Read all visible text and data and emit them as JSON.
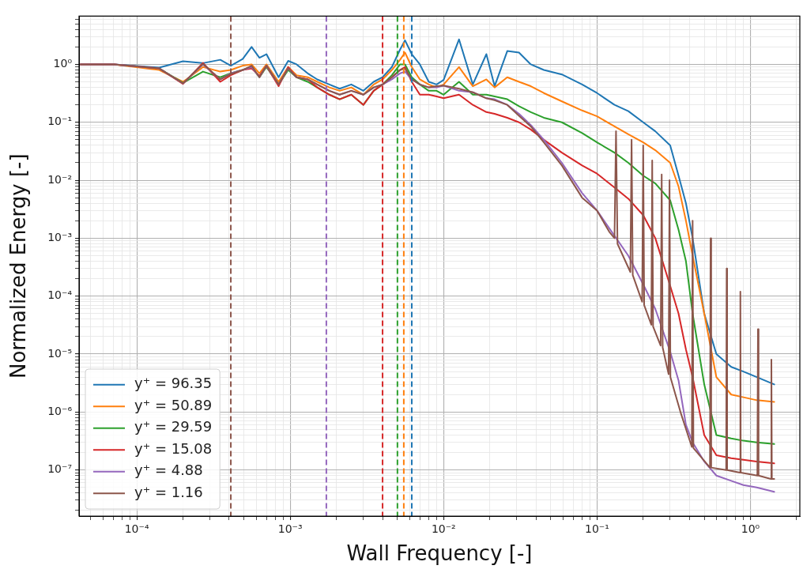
{
  "chart_data": {
    "type": "line",
    "xlabel": "Wall Frequency [-]",
    "ylabel": "Normalized Energy [-]",
    "log": "xy",
    "grid": true,
    "legend": "bottom left",
    "xlim": [
      4.2e-05,
      2.1
    ],
    "ylim": [
      1.6e-08,
      6.8
    ],
    "xticks": [
      {
        "value": 5e-05,
        "label": null
      },
      {
        "value": 6e-05,
        "label": null
      },
      {
        "value": 7e-05,
        "label": null
      },
      {
        "value": 8e-05,
        "label": null
      },
      {
        "value": 9e-05,
        "label": null
      },
      {
        "value": 0.0001,
        "label": "10⁻⁴"
      },
      {
        "value": 0.0002,
        "label": null
      },
      {
        "value": 0.0003,
        "label": null
      },
      {
        "value": 0.0004,
        "label": null
      },
      {
        "value": 0.0005,
        "label": null
      },
      {
        "value": 0.0006,
        "label": null
      },
      {
        "value": 0.0007,
        "label": null
      },
      {
        "value": 0.0008,
        "label": null
      },
      {
        "value": 0.0009,
        "label": null
      },
      {
        "value": 0.001,
        "label": "10⁻³"
      },
      {
        "value": 0.002,
        "label": null
      },
      {
        "value": 0.003,
        "label": null
      },
      {
        "value": 0.004,
        "label": null
      },
      {
        "value": 0.005,
        "label": null
      },
      {
        "value": 0.006,
        "label": null
      },
      {
        "value": 0.007,
        "label": null
      },
      {
        "value": 0.008,
        "label": null
      },
      {
        "value": 0.009,
        "label": null
      },
      {
        "value": 0.01,
        "label": "10⁻²"
      },
      {
        "value": 0.02,
        "label": null
      },
      {
        "value": 0.03,
        "label": null
      },
      {
        "value": 0.04,
        "label": null
      },
      {
        "value": 0.05,
        "label": null
      },
      {
        "value": 0.06,
        "label": null
      },
      {
        "value": 0.07,
        "label": null
      },
      {
        "value": 0.08,
        "label": null
      },
      {
        "value": 0.09,
        "label": null
      },
      {
        "value": 0.1,
        "label": "10⁻¹"
      },
      {
        "value": 0.2,
        "label": null
      },
      {
        "value": 0.3,
        "label": null
      },
      {
        "value": 0.4,
        "label": null
      },
      {
        "value": 0.5,
        "label": null
      },
      {
        "value": 0.6,
        "label": null
      },
      {
        "value": 0.7,
        "label": null
      },
      {
        "value": 0.8,
        "label": null
      },
      {
        "value": 0.9,
        "label": null
      },
      {
        "value": 1,
        "label": "10⁰"
      },
      {
        "value": 2,
        "label": null
      }
    ],
    "yticks": [
      {
        "value": 2e-08,
        "label": null
      },
      {
        "value": 3e-08,
        "label": null
      },
      {
        "value": 4e-08,
        "label": null
      },
      {
        "value": 5e-08,
        "label": null
      },
      {
        "value": 6e-08,
        "label": null
      },
      {
        "value": 7e-08,
        "label": null
      },
      {
        "value": 8e-08,
        "label": null
      },
      {
        "value": 9e-08,
        "label": null
      },
      {
        "value": 1e-07,
        "label": "10⁻⁷"
      },
      {
        "value": 2e-07,
        "label": null
      },
      {
        "value": 3e-07,
        "label": null
      },
      {
        "value": 4e-07,
        "label": null
      },
      {
        "value": 5e-07,
        "label": null
      },
      {
        "value": 6e-07,
        "label": null
      },
      {
        "value": 7e-07,
        "label": null
      },
      {
        "value": 8e-07,
        "label": null
      },
      {
        "value": 9e-07,
        "label": null
      },
      {
        "value": 1e-06,
        "label": "10⁻⁶"
      },
      {
        "value": 2e-06,
        "label": null
      },
      {
        "value": 3e-06,
        "label": null
      },
      {
        "value": 4e-06,
        "label": null
      },
      {
        "value": 5e-06,
        "label": null
      },
      {
        "value": 6e-06,
        "label": null
      },
      {
        "value": 7e-06,
        "label": null
      },
      {
        "value": 8e-06,
        "label": null
      },
      {
        "value": 9e-06,
        "label": null
      },
      {
        "value": 1e-05,
        "label": "10⁻⁵"
      },
      {
        "value": 2e-05,
        "label": null
      },
      {
        "value": 3e-05,
        "label": null
      },
      {
        "value": 4e-05,
        "label": null
      },
      {
        "value": 5e-05,
        "label": null
      },
      {
        "value": 6e-05,
        "label": null
      },
      {
        "value": 7e-05,
        "label": null
      },
      {
        "value": 8e-05,
        "label": null
      },
      {
        "value": 9e-05,
        "label": null
      },
      {
        "value": 0.0001,
        "label": "10⁻⁴"
      },
      {
        "value": 0.0002,
        "label": null
      },
      {
        "value": 0.0003,
        "label": null
      },
      {
        "value": 0.0004,
        "label": null
      },
      {
        "value": 0.0005,
        "label": null
      },
      {
        "value": 0.0006,
        "label": null
      },
      {
        "value": 0.0007,
        "label": null
      },
      {
        "value": 0.0008,
        "label": null
      },
      {
        "value": 0.0009,
        "label": null
      },
      {
        "value": 0.001,
        "label": "10⁻³"
      },
      {
        "value": 0.002,
        "label": null
      },
      {
        "value": 0.003,
        "label": null
      },
      {
        "value": 0.004,
        "label": null
      },
      {
        "value": 0.005,
        "label": null
      },
      {
        "value": 0.006,
        "label": null
      },
      {
        "value": 0.007,
        "label": null
      },
      {
        "value": 0.008,
        "label": null
      },
      {
        "value": 0.009,
        "label": null
      },
      {
        "value": 0.01,
        "label": "10⁻²"
      },
      {
        "value": 0.02,
        "label": null
      },
      {
        "value": 0.03,
        "label": null
      },
      {
        "value": 0.04,
        "label": null
      },
      {
        "value": 0.05,
        "label": null
      },
      {
        "value": 0.06,
        "label": null
      },
      {
        "value": 0.07,
        "label": null
      },
      {
        "value": 0.08,
        "label": null
      },
      {
        "value": 0.09,
        "label": null
      },
      {
        "value": 0.1,
        "label": "10⁻¹"
      },
      {
        "value": 0.2,
        "label": null
      },
      {
        "value": 0.3,
        "label": null
      },
      {
        "value": 0.4,
        "label": null
      },
      {
        "value": 0.5,
        "label": null
      },
      {
        "value": 0.6,
        "label": null
      },
      {
        "value": 0.7,
        "label": null
      },
      {
        "value": 0.8,
        "label": null
      },
      {
        "value": 0.9,
        "label": null
      },
      {
        "value": 1,
        "label": "10⁰"
      },
      {
        "value": 2,
        "label": null
      },
      {
        "value": 3,
        "label": null
      },
      {
        "value": 4,
        "label": null
      },
      {
        "value": 5,
        "label": null
      },
      {
        "value": 6,
        "label": null
      }
    ],
    "x": [
      4.3e-05,
      7.1e-05,
      0.00014,
      0.0002,
      0.00027,
      0.00035,
      0.00041,
      0.00049,
      0.00056,
      0.00063,
      0.0007,
      0.00084,
      0.00097,
      0.0011,
      0.0013,
      0.0015,
      0.0018,
      0.0021,
      0.0025,
      0.003,
      0.0035,
      0.004,
      0.0046,
      0.0052,
      0.0056,
      0.0062,
      0.007,
      0.008,
      0.009,
      0.01,
      0.0126,
      0.0155,
      0.019,
      0.0215,
      0.026,
      0.031,
      0.037,
      0.045,
      0.059,
      0.08,
      0.1,
      0.13,
      0.16,
      0.2,
      0.24,
      0.3,
      0.34,
      0.38,
      0.42,
      0.5,
      0.6,
      0.75,
      0.9,
      1.1,
      1.43
    ],
    "series": [
      {
        "name": "y⁺ = 96.35",
        "color": "#1f77b4",
        "values": [
          1,
          1,
          0.88,
          1.13,
          1.05,
          1.2,
          0.95,
          1.24,
          2.0,
          1.3,
          1.5,
          0.6,
          1.15,
          1.0,
          0.7,
          0.55,
          0.45,
          0.38,
          0.45,
          0.35,
          0.5,
          0.6,
          0.9,
          1.8,
          2.6,
          1.5,
          1.0,
          0.5,
          0.45,
          0.54,
          2.7,
          0.45,
          1.5,
          0.42,
          1.7,
          1.6,
          1.0,
          0.8,
          0.67,
          0.45,
          0.32,
          0.2,
          0.156,
          0.1,
          0.07,
          0.04,
          0.012,
          0.004,
          0.001,
          5e-05,
          1e-05,
          6e-06,
          5e-06,
          4e-06,
          3e-06
        ]
      },
      {
        "name": "y⁺ = 50.89",
        "color": "#ff7f0e",
        "values": [
          1,
          1,
          0.8,
          0.5,
          0.9,
          0.75,
          0.8,
          0.95,
          1.0,
          0.7,
          1.0,
          0.5,
          0.9,
          0.65,
          0.6,
          0.5,
          0.4,
          0.35,
          0.4,
          0.3,
          0.45,
          0.55,
          0.8,
          1.2,
          1.6,
          0.9,
          0.55,
          0.45,
          0.4,
          0.45,
          0.9,
          0.42,
          0.55,
          0.4,
          0.6,
          0.5,
          0.42,
          0.32,
          0.23,
          0.16,
          0.127,
          0.085,
          0.062,
          0.045,
          0.033,
          0.02,
          0.0078,
          0.002,
          0.0005,
          5e-05,
          4e-06,
          2e-06,
          1.8e-06,
          1.6e-06,
          1.5e-06
        ]
      },
      {
        "name": "y⁺ = 29.59",
        "color": "#2ca02c",
        "values": [
          null,
          null,
          0.85,
          0.48,
          0.75,
          0.6,
          0.7,
          0.8,
          0.9,
          0.6,
          0.9,
          0.45,
          0.8,
          0.6,
          0.5,
          0.4,
          0.3,
          0.25,
          0.3,
          0.2,
          0.35,
          0.45,
          0.65,
          1.0,
          1.0,
          0.6,
          0.45,
          0.35,
          0.35,
          0.3,
          0.5,
          0.3,
          0.3,
          0.28,
          0.25,
          0.19,
          0.15,
          0.12,
          0.1,
          0.065,
          0.045,
          0.03,
          0.02,
          0.012,
          0.0088,
          0.0045,
          0.0014,
          0.0004,
          5e-05,
          3e-06,
          4e-07,
          3.5e-07,
          3.2e-07,
          3e-07,
          2.8e-07
        ]
      },
      {
        "name": "y⁺ = 15.08",
        "color": "#d62728",
        "values": [
          1,
          1,
          0.85,
          0.46,
          1.06,
          0.5,
          0.65,
          0.8,
          0.85,
          0.63,
          0.94,
          0.42,
          0.9,
          0.6,
          0.55,
          0.4,
          0.3,
          0.25,
          0.3,
          0.2,
          0.35,
          0.45,
          0.6,
          0.8,
          0.9,
          0.5,
          0.3,
          0.3,
          0.28,
          0.26,
          0.3,
          0.2,
          0.15,
          0.14,
          0.12,
          0.1,
          0.075,
          0.05,
          0.03,
          0.018,
          0.013,
          0.0075,
          0.0048,
          0.0025,
          0.001,
          0.00015,
          5e-05,
          1.2e-05,
          4e-06,
          4e-07,
          1.8e-07,
          1.6e-07,
          1.5e-07,
          1.4e-07,
          1.3e-07
        ]
      },
      {
        "name": "y⁺ = 4.88",
        "color": "#9467bd",
        "values": [
          1,
          1,
          0.85,
          0.47,
          1.0,
          0.55,
          0.7,
          0.8,
          0.9,
          0.6,
          0.95,
          0.45,
          0.85,
          0.6,
          0.55,
          0.45,
          0.35,
          0.3,
          0.35,
          0.3,
          0.4,
          0.45,
          0.55,
          0.7,
          0.75,
          0.55,
          0.45,
          0.4,
          0.4,
          0.43,
          0.35,
          0.33,
          0.26,
          0.25,
          0.2,
          0.14,
          0.09,
          0.05,
          0.02,
          0.006,
          0.003,
          0.0011,
          0.0005,
          0.00016,
          6e-05,
          1.1e-05,
          3.5e-06,
          6e-07,
          3e-07,
          1.4e-07,
          8e-08,
          6.5e-08,
          5.5e-08,
          5e-08,
          4.2e-08
        ]
      },
      {
        "name": "y⁺ = 1.16",
        "color": "#8c564b",
        "x": [
          4.3e-05,
          7.1e-05,
          0.00014,
          0.0002,
          0.00027,
          0.00035,
          0.00041,
          0.00049,
          0.00056,
          0.00063,
          0.0007,
          0.00084,
          0.00097,
          0.0011,
          0.0013,
          0.0015,
          0.0018,
          0.0021,
          0.0025,
          0.003,
          0.0035,
          0.004,
          0.0046,
          0.0052,
          0.0056,
          0.0062,
          0.007,
          0.008,
          0.009,
          0.01,
          0.0126,
          0.0155,
          0.019,
          0.0215,
          0.026,
          0.031,
          0.037,
          0.045,
          0.059,
          0.08,
          0.1,
          0.12,
          0.13,
          0.133,
          0.136,
          0.165,
          0.168,
          0.171,
          0.197,
          0.2,
          0.203,
          0.226,
          0.229,
          0.232,
          0.26,
          0.264,
          0.268,
          0.293,
          0.297,
          0.301,
          0.35,
          0.415,
          0.42,
          0.425,
          0.545,
          0.55,
          0.555,
          0.695,
          0.7,
          0.705,
          0.855,
          0.86,
          0.865,
          1.11,
          1.12,
          1.13,
          1.36,
          1.37,
          1.38,
          1.43
        ],
        "values": [
          1,
          1,
          0.85,
          0.47,
          1.02,
          0.55,
          0.68,
          0.8,
          0.95,
          0.6,
          0.95,
          0.45,
          0.85,
          0.6,
          0.55,
          0.45,
          0.35,
          0.3,
          0.35,
          0.3,
          0.4,
          0.45,
          0.6,
          0.8,
          0.85,
          0.55,
          0.45,
          0.4,
          0.42,
          0.43,
          0.38,
          0.33,
          0.26,
          0.24,
          0.2,
          0.13,
          0.085,
          0.045,
          0.018,
          0.005,
          0.003,
          0.0013,
          0.001,
          0.07,
          0.0008,
          0.00026,
          0.05,
          0.00023,
          8e-05,
          0.04,
          7e-05,
          3.2e-05,
          0.022,
          3e-05,
          1.4e-05,
          0.0126,
          1.3e-05,
          4.5e-06,
          0.01,
          4e-06,
          1e-06,
          2.5e-07,
          0.002,
          2.4e-07,
          1.1e-07,
          0.001,
          1.1e-07,
          1e-07,
          0.0003,
          1e-07,
          9e-08,
          0.00012,
          9e-08,
          8e-08,
          2.7e-05,
          8e-08,
          7e-08,
          8e-06,
          7e-08,
          7e-08
        ]
      }
    ],
    "ref_lines": [
      {
        "axis": "x",
        "value": 0.00041,
        "color": "#8c564b",
        "line_style": "dashed"
      },
      {
        "axis": "x",
        "value": 0.00172,
        "color": "#9467bd",
        "line_style": "dashed"
      },
      {
        "axis": "x",
        "value": 0.004,
        "color": "#d62728",
        "line_style": "dashed"
      },
      {
        "axis": "x",
        "value": 0.005,
        "color": "#2ca02c",
        "line_style": "dashed"
      },
      {
        "axis": "x",
        "value": 0.0055,
        "color": "#ff7f0e",
        "line_style": "dashed"
      },
      {
        "axis": "x",
        "value": 0.0062,
        "color": "#1f77b4",
        "line_style": "dashed"
      }
    ]
  }
}
